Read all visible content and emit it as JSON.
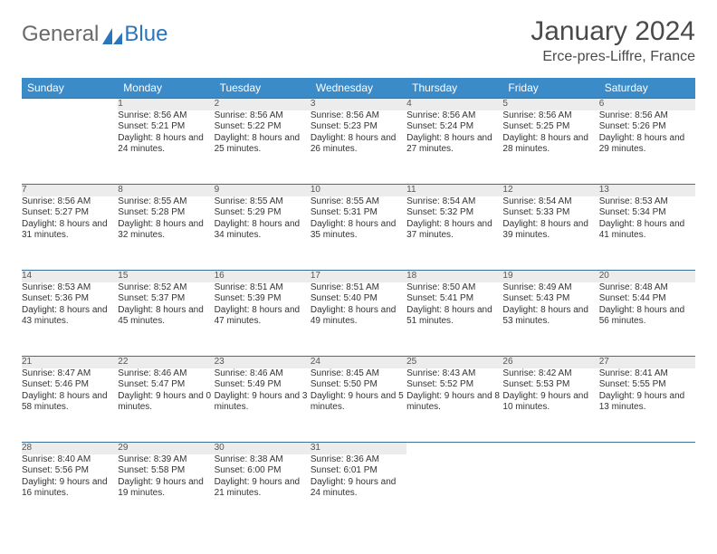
{
  "logo": {
    "general": "General",
    "blue": "Blue"
  },
  "title": "January 2024",
  "location": "Erce-pres-Liffre, France",
  "colors": {
    "header_bg": "#3b8bc9",
    "header_text": "#ffffff",
    "daynum_bg": "#ececec",
    "row_divider": "#3b6f9a",
    "body_text": "#333333",
    "title_text": "#4a4a4a",
    "logo_gray": "#6a6a6a",
    "logo_blue": "#2a75bb"
  },
  "weekdays": [
    "Sunday",
    "Monday",
    "Tuesday",
    "Wednesday",
    "Thursday",
    "Friday",
    "Saturday"
  ],
  "weeks": [
    [
      {
        "n": "",
        "sr": "",
        "ss": "",
        "dl": ""
      },
      {
        "n": "1",
        "sr": "Sunrise: 8:56 AM",
        "ss": "Sunset: 5:21 PM",
        "dl": "Daylight: 8 hours and 24 minutes."
      },
      {
        "n": "2",
        "sr": "Sunrise: 8:56 AM",
        "ss": "Sunset: 5:22 PM",
        "dl": "Daylight: 8 hours and 25 minutes."
      },
      {
        "n": "3",
        "sr": "Sunrise: 8:56 AM",
        "ss": "Sunset: 5:23 PM",
        "dl": "Daylight: 8 hours and 26 minutes."
      },
      {
        "n": "4",
        "sr": "Sunrise: 8:56 AM",
        "ss": "Sunset: 5:24 PM",
        "dl": "Daylight: 8 hours and 27 minutes."
      },
      {
        "n": "5",
        "sr": "Sunrise: 8:56 AM",
        "ss": "Sunset: 5:25 PM",
        "dl": "Daylight: 8 hours and 28 minutes."
      },
      {
        "n": "6",
        "sr": "Sunrise: 8:56 AM",
        "ss": "Sunset: 5:26 PM",
        "dl": "Daylight: 8 hours and 29 minutes."
      }
    ],
    [
      {
        "n": "7",
        "sr": "Sunrise: 8:56 AM",
        "ss": "Sunset: 5:27 PM",
        "dl": "Daylight: 8 hours and 31 minutes."
      },
      {
        "n": "8",
        "sr": "Sunrise: 8:55 AM",
        "ss": "Sunset: 5:28 PM",
        "dl": "Daylight: 8 hours and 32 minutes."
      },
      {
        "n": "9",
        "sr": "Sunrise: 8:55 AM",
        "ss": "Sunset: 5:29 PM",
        "dl": "Daylight: 8 hours and 34 minutes."
      },
      {
        "n": "10",
        "sr": "Sunrise: 8:55 AM",
        "ss": "Sunset: 5:31 PM",
        "dl": "Daylight: 8 hours and 35 minutes."
      },
      {
        "n": "11",
        "sr": "Sunrise: 8:54 AM",
        "ss": "Sunset: 5:32 PM",
        "dl": "Daylight: 8 hours and 37 minutes."
      },
      {
        "n": "12",
        "sr": "Sunrise: 8:54 AM",
        "ss": "Sunset: 5:33 PM",
        "dl": "Daylight: 8 hours and 39 minutes."
      },
      {
        "n": "13",
        "sr": "Sunrise: 8:53 AM",
        "ss": "Sunset: 5:34 PM",
        "dl": "Daylight: 8 hours and 41 minutes."
      }
    ],
    [
      {
        "n": "14",
        "sr": "Sunrise: 8:53 AM",
        "ss": "Sunset: 5:36 PM",
        "dl": "Daylight: 8 hours and 43 minutes."
      },
      {
        "n": "15",
        "sr": "Sunrise: 8:52 AM",
        "ss": "Sunset: 5:37 PM",
        "dl": "Daylight: 8 hours and 45 minutes."
      },
      {
        "n": "16",
        "sr": "Sunrise: 8:51 AM",
        "ss": "Sunset: 5:39 PM",
        "dl": "Daylight: 8 hours and 47 minutes."
      },
      {
        "n": "17",
        "sr": "Sunrise: 8:51 AM",
        "ss": "Sunset: 5:40 PM",
        "dl": "Daylight: 8 hours and 49 minutes."
      },
      {
        "n": "18",
        "sr": "Sunrise: 8:50 AM",
        "ss": "Sunset: 5:41 PM",
        "dl": "Daylight: 8 hours and 51 minutes."
      },
      {
        "n": "19",
        "sr": "Sunrise: 8:49 AM",
        "ss": "Sunset: 5:43 PM",
        "dl": "Daylight: 8 hours and 53 minutes."
      },
      {
        "n": "20",
        "sr": "Sunrise: 8:48 AM",
        "ss": "Sunset: 5:44 PM",
        "dl": "Daylight: 8 hours and 56 minutes."
      }
    ],
    [
      {
        "n": "21",
        "sr": "Sunrise: 8:47 AM",
        "ss": "Sunset: 5:46 PM",
        "dl": "Daylight: 8 hours and 58 minutes."
      },
      {
        "n": "22",
        "sr": "Sunrise: 8:46 AM",
        "ss": "Sunset: 5:47 PM",
        "dl": "Daylight: 9 hours and 0 minutes."
      },
      {
        "n": "23",
        "sr": "Sunrise: 8:46 AM",
        "ss": "Sunset: 5:49 PM",
        "dl": "Daylight: 9 hours and 3 minutes."
      },
      {
        "n": "24",
        "sr": "Sunrise: 8:45 AM",
        "ss": "Sunset: 5:50 PM",
        "dl": "Daylight: 9 hours and 5 minutes."
      },
      {
        "n": "25",
        "sr": "Sunrise: 8:43 AM",
        "ss": "Sunset: 5:52 PM",
        "dl": "Daylight: 9 hours and 8 minutes."
      },
      {
        "n": "26",
        "sr": "Sunrise: 8:42 AM",
        "ss": "Sunset: 5:53 PM",
        "dl": "Daylight: 9 hours and 10 minutes."
      },
      {
        "n": "27",
        "sr": "Sunrise: 8:41 AM",
        "ss": "Sunset: 5:55 PM",
        "dl": "Daylight: 9 hours and 13 minutes."
      }
    ],
    [
      {
        "n": "28",
        "sr": "Sunrise: 8:40 AM",
        "ss": "Sunset: 5:56 PM",
        "dl": "Daylight: 9 hours and 16 minutes."
      },
      {
        "n": "29",
        "sr": "Sunrise: 8:39 AM",
        "ss": "Sunset: 5:58 PM",
        "dl": "Daylight: 9 hours and 19 minutes."
      },
      {
        "n": "30",
        "sr": "Sunrise: 8:38 AM",
        "ss": "Sunset: 6:00 PM",
        "dl": "Daylight: 9 hours and 21 minutes."
      },
      {
        "n": "31",
        "sr": "Sunrise: 8:36 AM",
        "ss": "Sunset: 6:01 PM",
        "dl": "Daylight: 9 hours and 24 minutes."
      },
      {
        "n": "",
        "sr": "",
        "ss": "",
        "dl": ""
      },
      {
        "n": "",
        "sr": "",
        "ss": "",
        "dl": ""
      },
      {
        "n": "",
        "sr": "",
        "ss": "",
        "dl": ""
      }
    ]
  ]
}
